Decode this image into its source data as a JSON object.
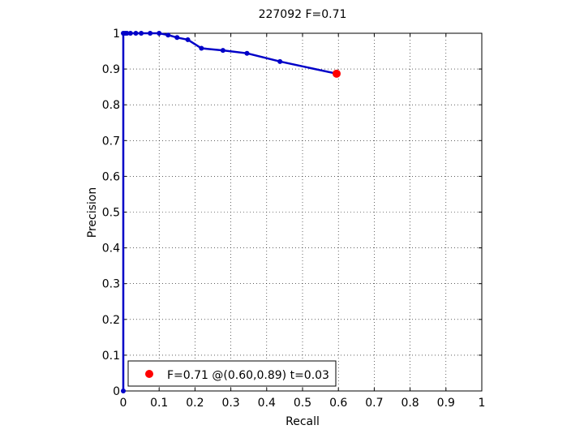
{
  "chart_data": {
    "type": "line",
    "title": "227092 F=0.71",
    "xlabel": "Recall",
    "ylabel": "Precision",
    "xlim": [
      0,
      1
    ],
    "ylim": [
      0,
      1
    ],
    "grid": true,
    "xticks": [
      "0",
      "0.1",
      "0.2",
      "0.3",
      "0.4",
      "0.5",
      "0.6",
      "0.7",
      "0.8",
      "0.9",
      "1"
    ],
    "yticks": [
      "0",
      "0.1",
      "0.2",
      "0.3",
      "0.4",
      "0.5",
      "0.6",
      "0.7",
      "0.8",
      "0.9",
      "1"
    ],
    "series": [
      {
        "color": "#0000c8",
        "points": [
          [
            0.0,
            0.0
          ],
          [
            0.0,
            1.0
          ],
          [
            0.005,
            1.0
          ],
          [
            0.01,
            1.0
          ],
          [
            0.02,
            1.0
          ],
          [
            0.035,
            1.0
          ],
          [
            0.05,
            1.0
          ],
          [
            0.075,
            1.0
          ],
          [
            0.1,
            1.0
          ],
          [
            0.125,
            0.995
          ],
          [
            0.15,
            0.988
          ],
          [
            0.18,
            0.982
          ],
          [
            0.218,
            0.958
          ],
          [
            0.278,
            0.952
          ],
          [
            0.345,
            0.944
          ],
          [
            0.437,
            0.921
          ],
          [
            0.595,
            0.887
          ]
        ]
      }
    ],
    "best_point": {
      "x": 0.595,
      "y": 0.887,
      "color": "#ff0000"
    },
    "legend": {
      "text": "F=0.71 @(0.60,0.89) t=0.03",
      "placement": "bottom-left"
    }
  }
}
